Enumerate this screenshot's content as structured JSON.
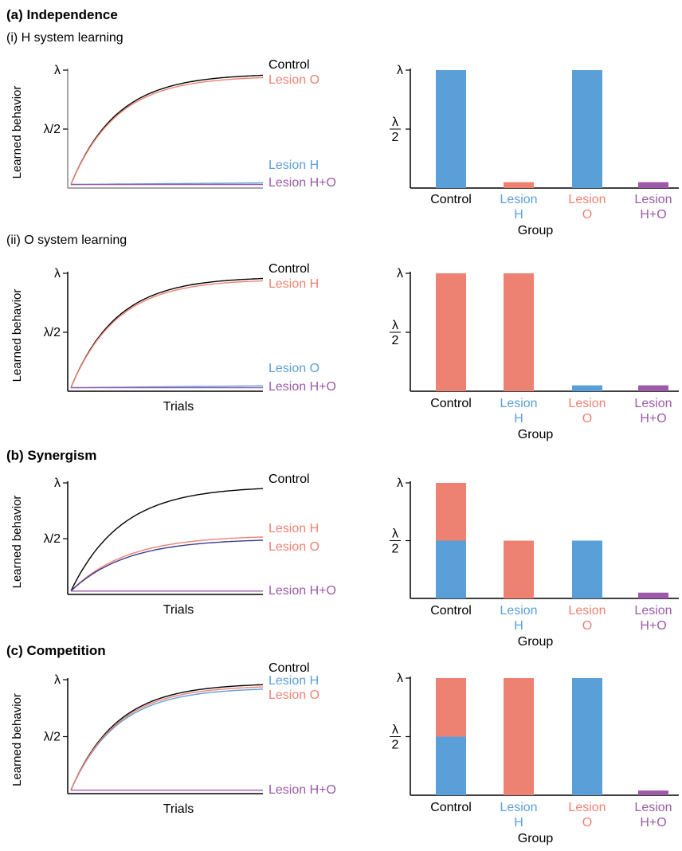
{
  "colors": {
    "control": "#000000",
    "lesion_h": "#5b9fd8",
    "lesion_o": "#ee8272",
    "lesion_ho": "#9c5aa8",
    "lesion_o_line_dark": "#3b3b8c",
    "axis": "#000000"
  },
  "sections": [
    {
      "title": "(a) Independence"
    },
    {
      "title": "(b) Synergism"
    },
    {
      "title": "(c) Competition"
    }
  ],
  "subtitles": [
    "(i) H system learning",
    "(ii) O system learning"
  ],
  "line_ylabel": "Learned behavior",
  "line_yticks": [
    "λ",
    "λ/2"
  ],
  "line_xlabel": "Trials",
  "bar_ytick_top": "λ",
  "bar_ytick_half_num": "λ",
  "bar_ytick_half_den": "2",
  "bar_xlabel": "Group",
  "categories": [
    {
      "line1": "Control",
      "line2": ""
    },
    {
      "line1": "Lesion",
      "line2": "H"
    },
    {
      "line1": "Lesion",
      "line2": "O"
    },
    {
      "line1": "Lesion",
      "line2": "H+O"
    }
  ],
  "chart_data": [
    {
      "id": "a_i_line",
      "type": "line",
      "ylabel": "Learned behavior",
      "xlabel": "",
      "ylim": [
        0,
        1
      ],
      "yticks": [
        "λ",
        "λ/2"
      ],
      "series": [
        {
          "name": "Control",
          "key": "control",
          "asymptote": 0.97,
          "rate": 4.2,
          "start": 0.03
        },
        {
          "name": "Lesion O",
          "key": "lesion_o",
          "asymptote": 0.95,
          "rate": 4.2,
          "start": 0.03
        },
        {
          "name": "Lesion H",
          "key": "lesion_h",
          "asymptote": 0.09,
          "rate": 0.25,
          "start": 0.03
        },
        {
          "name": "Lesion H+O",
          "key": "lesion_ho",
          "asymptote": 0.03,
          "rate": 0.5,
          "start": 0.03
        }
      ]
    },
    {
      "id": "a_i_bar",
      "type": "bar",
      "xlabel": "Group",
      "ylim": [
        0,
        1
      ],
      "categories": [
        "Control",
        "Lesion H",
        "Lesion O",
        "Lesion H+O"
      ],
      "series": [
        {
          "name": "H",
          "key": "lesion_h",
          "values": [
            1.0,
            0,
            1.0,
            0
          ]
        },
        {
          "name": "O",
          "key": "lesion_o",
          "values": [
            0,
            0.05,
            0,
            0
          ]
        },
        {
          "name": "H+O",
          "key": "lesion_ho",
          "values": [
            0,
            0,
            0,
            0.05
          ]
        }
      ]
    },
    {
      "id": "a_ii_line",
      "type": "line",
      "ylabel": "Learned behavior",
      "xlabel": "Trials",
      "ylim": [
        0,
        1
      ],
      "yticks": [
        "λ",
        "λ/2"
      ],
      "series": [
        {
          "name": "Control",
          "key": "control",
          "asymptote": 0.97,
          "rate": 4.2,
          "start": 0.03
        },
        {
          "name": "Lesion H",
          "key": "lesion_o",
          "asymptote": 0.95,
          "rate": 4.2,
          "start": 0.03
        },
        {
          "name": "Lesion O",
          "key": "lesion_h",
          "asymptote": 0.1,
          "rate": 0.25,
          "start": 0.03
        },
        {
          "name": "Lesion H+O",
          "key": "lesion_ho",
          "asymptote": 0.03,
          "rate": 0.5,
          "start": 0.03
        }
      ]
    },
    {
      "id": "a_ii_bar",
      "type": "bar",
      "xlabel": "Group",
      "ylim": [
        0,
        1
      ],
      "categories": [
        "Control",
        "Lesion H",
        "Lesion O",
        "Lesion H+O"
      ],
      "series": [
        {
          "name": "O",
          "key": "lesion_o",
          "values": [
            1.0,
            1.0,
            0,
            0
          ]
        },
        {
          "name": "H",
          "key": "lesion_h",
          "values": [
            0,
            0,
            0.05,
            0
          ]
        },
        {
          "name": "H+O",
          "key": "lesion_ho",
          "values": [
            0,
            0,
            0,
            0.05
          ]
        }
      ]
    },
    {
      "id": "b_line",
      "type": "line",
      "ylabel": "Learned behavior",
      "xlabel": "Trials",
      "ylim": [
        0,
        1
      ],
      "yticks": [
        "λ",
        "λ/2"
      ],
      "series": [
        {
          "name": "Control",
          "key": "control",
          "asymptote": 0.97,
          "rate": 3.8,
          "start": 0.03
        },
        {
          "name": "Lesion H",
          "key": "lesion_o",
          "asymptote": 0.53,
          "rate": 3.5,
          "start": 0.03
        },
        {
          "name": "Lesion O",
          "key": "lesion_o_line_dark",
          "asymptote": 0.5,
          "rate": 3.5,
          "start": 0.03
        },
        {
          "name": "Lesion H+O",
          "key": "lesion_ho",
          "asymptote": 0.03,
          "rate": 0.5,
          "start": 0.03
        }
      ]
    },
    {
      "id": "b_bar",
      "type": "bar",
      "xlabel": "Group",
      "ylim": [
        0,
        1
      ],
      "categories": [
        "Control",
        "Lesion H",
        "Lesion O",
        "Lesion H+O"
      ],
      "series": [
        {
          "name": "H",
          "key": "lesion_h",
          "values": [
            0.5,
            0,
            0.5,
            0
          ]
        },
        {
          "name": "O",
          "key": "lesion_o",
          "values": [
            0.5,
            0.5,
            0,
            0
          ]
        },
        {
          "name": "H+O",
          "key": "lesion_ho",
          "values": [
            0,
            0,
            0,
            0.05
          ]
        }
      ]
    },
    {
      "id": "c_line",
      "type": "line",
      "ylabel": "Learned behavior",
      "xlabel": "Trials",
      "ylim": [
        0,
        1
      ],
      "yticks": [
        "λ",
        "λ/2"
      ],
      "series": [
        {
          "name": "Control",
          "key": "control",
          "asymptote": 0.97,
          "rate": 4.2,
          "start": 0.03
        },
        {
          "name": "Lesion H",
          "key": "lesion_h",
          "asymptote": 0.93,
          "rate": 4.2,
          "start": 0.03
        },
        {
          "name": "Lesion O",
          "key": "lesion_o",
          "asymptote": 0.95,
          "rate": 4.2,
          "start": 0.03
        },
        {
          "name": "Lesion H+O",
          "key": "lesion_ho",
          "asymptote": 0.03,
          "rate": 0.5,
          "start": 0.03
        }
      ]
    },
    {
      "id": "c_bar",
      "type": "bar",
      "xlabel": "Group",
      "ylim": [
        0,
        1
      ],
      "categories": [
        "Control",
        "Lesion H",
        "Lesion O",
        "Lesion H+O"
      ],
      "series": [
        {
          "name": "H",
          "key": "lesion_h",
          "values": [
            0.5,
            0,
            1.0,
            0
          ]
        },
        {
          "name": "O",
          "key": "lesion_o",
          "values": [
            0.5,
            1.0,
            0,
            0
          ]
        },
        {
          "name": "H+O",
          "key": "lesion_ho",
          "values": [
            0,
            0,
            0,
            0.04
          ]
        }
      ]
    }
  ]
}
